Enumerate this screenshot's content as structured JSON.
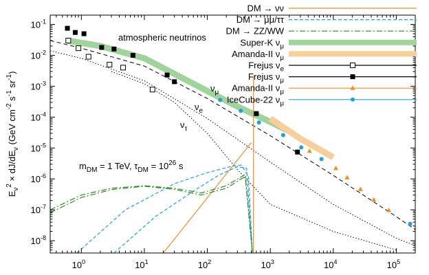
{
  "chart_data": {
    "type": "loglog",
    "xscale": "log",
    "yscale": "log",
    "xlim": [
      0.32,
      200000
    ],
    "ylim": [
      4e-09,
      0.2
    ],
    "xticks": [
      {
        "value": 1,
        "label": "10",
        "exponent": "0"
      },
      {
        "value": 10,
        "label": "10",
        "exponent": "1"
      },
      {
        "value": 100,
        "label": "10",
        "exponent": "2"
      },
      {
        "value": 1000,
        "label": "10",
        "exponent": "3"
      },
      {
        "value": 10000,
        "label": "10",
        "exponent": "4"
      },
      {
        "value": 100000,
        "label": "10",
        "exponent": "5"
      }
    ],
    "yticks": [
      {
        "value": 0.1,
        "label": "10",
        "exponent": "-1"
      },
      {
        "value": 0.01,
        "label": "10",
        "exponent": "-2"
      },
      {
        "value": 0.001,
        "label": "10",
        "exponent": "-3"
      },
      {
        "value": 0.0001,
        "label": "10",
        "exponent": "-4"
      },
      {
        "value": 1e-05,
        "label": "10",
        "exponent": "-5"
      },
      {
        "value": 1e-06,
        "label": "10",
        "exponent": "-6"
      },
      {
        "value": 1e-07,
        "label": "10",
        "exponent": "-7"
      },
      {
        "value": 1e-08,
        "label": "10",
        "exponent": "-8"
      }
    ],
    "ylabel": [
      {
        "t": "E"
      },
      {
        "t": "ν",
        "sub": true
      },
      {
        "t": "2",
        "sup": true
      },
      {
        "t": " × dJ/dE"
      },
      {
        "t": "ν",
        "sub": true
      },
      {
        "t": " (GeV cm"
      },
      {
        "t": "-2",
        "sup": true
      },
      {
        "t": " s"
      },
      {
        "t": "-1",
        "sup": true
      },
      {
        "t": " sr"
      },
      {
        "t": "-1",
        "sup": true
      },
      {
        "t": ")"
      }
    ],
    "annotations": [
      [
        {
          "t": "atmospheric neutrinos"
        }
      ],
      [
        {
          "t": "m"
        },
        {
          "t": "DM",
          "sub": true
        },
        {
          "t": " = 1 TeV,  τ"
        },
        {
          "t": "DM",
          "sub": true
        },
        {
          "t": " = 10"
        },
        {
          "t": "26",
          "sup": true
        },
        {
          "t": " s"
        }
      ]
    ],
    "legend": "upper right",
    "atmospheric": [
      {
        "name": "ν",
        "name_sub": "μ",
        "dash": "6,4",
        "x": [
          0.32,
          1,
          10,
          100,
          1000,
          10000,
          100000,
          200000
        ],
        "values": [
          0.03,
          0.017,
          0.0045,
          0.0004,
          2.5e-05,
          1.3e-06,
          6e-08,
          2.3e-08
        ]
      },
      {
        "name": "ν",
        "name_sub": "e",
        "dash": "1.5,2.5",
        "x": [
          0.32,
          1,
          10,
          100,
          1000,
          10000,
          100000,
          200000
        ],
        "values": [
          0.014,
          0.008,
          0.0015,
          9e-05,
          3.5e-06,
          1.5e-07,
          1.2e-08,
          7e-09
        ]
      },
      {
        "name": "ν",
        "name_sub": "τ",
        "dash": "1.5,2.5",
        "x": [
          3,
          10,
          30,
          100,
          300,
          1000,
          10000,
          100000
        ],
        "values": [
          0.003,
          0.0012,
          0.0003,
          3e-05,
          2e-06,
          1.5e-07,
          2e-08,
          5e-09
        ]
      }
    ],
    "series": [
      {
        "name": "DM → νν",
        "color": "#f28e1e",
        "style": "line",
        "lines": [
          {
            "x": [
              20,
              500
            ],
            "values": [
              4e-09,
              1.5e-05
            ]
          },
          {
            "x": [
              540,
              540
            ],
            "values": [
              4e-09,
              0.0022
            ]
          }
        ]
      },
      {
        "name": "DM → μμ/ττ",
        "color": "#1ba1e2",
        "style": "line",
        "dash": "5,3",
        "lines": [
          {
            "x": [
              0.85,
              5,
              30,
              100,
              250,
              350,
              450,
              520
            ],
            "values": [
              4e-09,
              1e-07,
              7e-07,
              1.6e-06,
              2.6e-06,
              2.8e-06,
              1.2e-06,
              4e-09
            ]
          },
          {
            "x": [
              3.3,
              15,
              60,
              150,
              300,
              420,
              520
            ],
            "values": [
              4e-09,
              6e-08,
              4e-07,
              1.3e-06,
              2.5e-06,
              2.2e-06,
              4e-09
            ]
          }
        ]
      },
      {
        "name": "DM → ZZ/WW",
        "color": "#2e8b22",
        "style": "line",
        "dash": "8,3,2,3",
        "lines": [
          {
            "x": [
              0.32,
              1,
              3,
              10,
              30,
              80,
              200,
              400,
              520
            ],
            "values": [
              1e-07,
              3e-07,
              5e-07,
              6e-07,
              5e-07,
              3.5e-07,
              6e-07,
              1.4e-06,
              4e-09
            ]
          },
          {
            "x": [
              0.32,
              1,
              3,
              10,
              30,
              80,
              200,
              400,
              520
            ],
            "values": [
              8e-08,
              2.5e-07,
              4.5e-07,
              5.8e-07,
              4.6e-07,
              3e-07,
              5e-07,
              1.2e-06,
              4e-09
            ]
          }
        ]
      },
      {
        "name": "Super-K ν",
        "name_sub": "μ",
        "color": "#9fd49b",
        "style": "band",
        "x": [
          0.6,
          2,
          10,
          30,
          100,
          300,
          1000,
          2000
        ],
        "values": [
          0.03,
          0.02,
          0.008,
          0.0025,
          0.0007,
          0.00022,
          7e-05,
          3.5e-05
        ]
      },
      {
        "name": "Amanda-II ν",
        "name_sub": "μ",
        "color": "#f7cf9b",
        "style": "band",
        "x": [
          1000,
          3000,
          10000
        ],
        "values": [
          9e-05,
          2e-05,
          5e-06
        ]
      },
      {
        "name": "Frejus ν",
        "name_sub": "e",
        "color": "#000000",
        "style": "points",
        "marker": "square-open",
        "x": [
          0.62,
          0.9,
          1.3,
          2.8,
          4.6,
          13.5
        ],
        "values": [
          0.03,
          0.017,
          0.009,
          0.005,
          0.004,
          0.00078
        ]
      },
      {
        "name": "Frejus ν",
        "name_sub": "μ",
        "color": "#000000",
        "style": "points",
        "marker": "square-filled",
        "x": [
          0.6,
          0.8,
          1.1,
          2.1,
          3.3,
          6.6,
          23,
          30,
          600,
          2700
        ],
        "values": [
          0.075,
          0.055,
          0.05,
          0.018,
          0.016,
          0.01,
          0.0023,
          0.0014,
          0.00013,
          7.4e-06
        ]
      },
      {
        "name": "Amanda-II ν",
        "name_sub": "μ",
        "color": "#f28e1e",
        "style": "points",
        "marker": "triangle",
        "x": [
          4200,
          11000,
          16600,
          27000,
          44000,
          76000
        ],
        "values": [
          7.9e-06,
          2.2e-06,
          1.1e-06,
          4.6e-07,
          2.1e-07,
          9.6e-08
        ]
      },
      {
        "name": "IceCube-22 ν",
        "name_sub": "μ",
        "color": "#1ba1e2",
        "style": "points",
        "marker": "circle",
        "x": [
          160,
          340,
          660,
          1600,
          3100,
          6500,
          166000
        ],
        "values": [
          0.00036,
          0.00016,
          6.7e-05,
          2.6e-05,
          1.05e-05,
          4.4e-06,
          3.5e-08
        ]
      }
    ]
  }
}
